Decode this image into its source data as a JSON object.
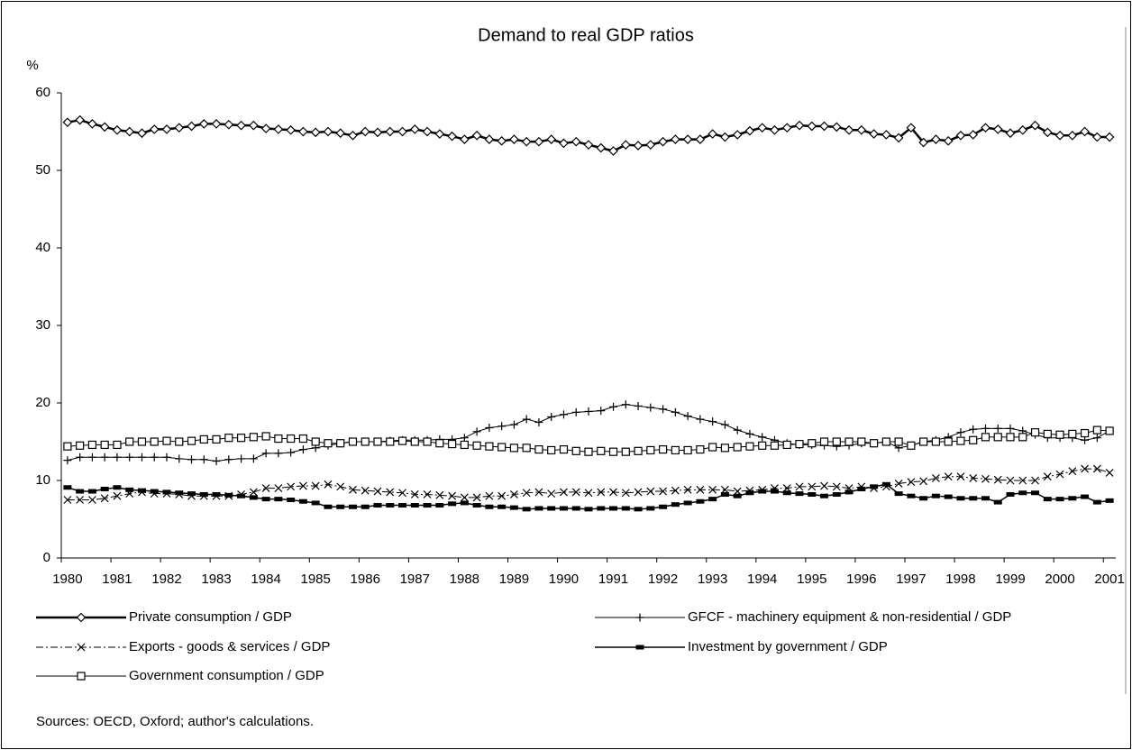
{
  "chart_data": {
    "type": "line",
    "title": "Demand to real GDP ratios",
    "y_label": "%",
    "source": "Sources: OECD, Oxford; author's calculations.",
    "categories": [
      "1980",
      null,
      null,
      null,
      "1981",
      null,
      null,
      null,
      "1982",
      null,
      null,
      null,
      "1983",
      null,
      null,
      null,
      "1984",
      null,
      null,
      null,
      "1985",
      null,
      null,
      null,
      "1986",
      null,
      null,
      null,
      "1987",
      null,
      null,
      null,
      "1988",
      null,
      null,
      null,
      "1989",
      null,
      null,
      null,
      "1990",
      null,
      null,
      null,
      "1991",
      null,
      null,
      null,
      "1992",
      null,
      null,
      null,
      "1993",
      null,
      null,
      null,
      "1994",
      null,
      null,
      null,
      "1995",
      null,
      null,
      null,
      "1996",
      null,
      null,
      null,
      "1997",
      null,
      null,
      null,
      "1998",
      null,
      null,
      null,
      "1999",
      null,
      null,
      null,
      "2000",
      null,
      null,
      null,
      "2001"
    ],
    "ylim": [
      0,
      60
    ],
    "yticks": [
      0,
      10,
      20,
      30,
      40,
      50,
      60
    ],
    "grid": false,
    "legend": "bottom",
    "series": [
      {
        "name": "Private consumption / GDP",
        "color": "#000000",
        "marker": "diamond",
        "dash": "solid",
        "width": 2.5,
        "values": [
          56.2,
          56.5,
          56.0,
          55.6,
          55.2,
          55.0,
          54.8,
          55.3,
          55.3,
          55.5,
          55.7,
          56.0,
          56.0,
          55.9,
          55.8,
          55.8,
          55.4,
          55.3,
          55.2,
          55.0,
          54.9,
          55.0,
          54.8,
          54.5,
          55.0,
          54.9,
          55.0,
          55.0,
          55.3,
          55.0,
          54.7,
          54.4,
          54.0,
          54.5,
          54.0,
          53.8,
          54.0,
          53.7,
          53.7,
          54.0,
          53.5,
          53.7,
          53.3,
          52.9,
          52.5,
          53.3,
          53.2,
          53.3,
          53.7,
          54.0,
          54.0,
          54.0,
          54.7,
          54.3,
          54.6,
          55.1,
          55.5,
          55.2,
          55.5,
          55.8,
          55.7,
          55.7,
          55.6,
          55.2,
          55.2,
          54.7,
          54.6,
          54.2,
          55.5,
          53.6,
          54.0,
          53.8,
          54.5,
          54.6,
          55.5,
          55.3,
          54.8,
          55.2,
          55.8,
          54.9,
          54.5,
          54.5,
          55.0,
          54.3,
          54.3
        ]
      },
      {
        "name": "GFCF - machinery equipment & non-residential / GDP",
        "color": "#000000",
        "marker": "plus",
        "dash": "solid",
        "width": 1,
        "values": [
          12.6,
          13.0,
          13.0,
          13.0,
          13.0,
          13.0,
          13.0,
          13.0,
          13.0,
          12.8,
          12.7,
          12.7,
          12.5,
          12.7,
          12.8,
          12.8,
          13.5,
          13.5,
          13.6,
          14.0,
          14.2,
          14.5,
          14.8,
          15.0,
          15.0,
          15.0,
          15.1,
          15.2,
          15.2,
          15.2,
          15.3,
          15.3,
          15.5,
          16.3,
          16.8,
          17.0,
          17.2,
          17.9,
          17.5,
          18.2,
          18.5,
          18.8,
          18.9,
          19.0,
          19.5,
          19.8,
          19.6,
          19.4,
          19.2,
          18.8,
          18.3,
          17.9,
          17.6,
          17.2,
          16.5,
          16.0,
          15.6,
          15.2,
          14.8,
          14.6,
          14.6,
          14.5,
          14.4,
          14.5,
          14.8,
          14.8,
          15.0,
          14.2,
          14.5,
          15.0,
          15.2,
          15.6,
          16.2,
          16.6,
          16.7,
          16.7,
          16.7,
          16.4,
          15.9,
          15.5,
          15.5,
          15.5,
          15.2,
          15.5,
          16.4
        ]
      },
      {
        "name": "Exports - goods & services / GDP",
        "color": "#000000",
        "marker": "cross",
        "dash": "dashdot",
        "width": 1,
        "values": [
          7.5,
          7.5,
          7.5,
          7.7,
          8.0,
          8.3,
          8.5,
          8.3,
          8.3,
          8.2,
          8.0,
          8.0,
          8.0,
          8.0,
          8.2,
          8.5,
          9.0,
          9.0,
          9.2,
          9.3,
          9.3,
          9.5,
          9.2,
          8.8,
          8.7,
          8.6,
          8.5,
          8.4,
          8.2,
          8.2,
          8.1,
          8.0,
          7.8,
          7.8,
          8.0,
          8.0,
          8.2,
          8.4,
          8.5,
          8.3,
          8.5,
          8.5,
          8.4,
          8.5,
          8.5,
          8.4,
          8.5,
          8.6,
          8.6,
          8.7,
          8.8,
          8.8,
          8.8,
          8.8,
          8.6,
          8.7,
          8.8,
          9.0,
          9.0,
          9.2,
          9.2,
          9.3,
          9.2,
          9.0,
          9.2,
          9.0,
          9.2,
          9.6,
          9.8,
          9.9,
          10.3,
          10.5,
          10.5,
          10.3,
          10.2,
          10.1,
          10.0,
          10.0,
          10.0,
          10.5,
          10.8,
          11.2,
          11.5,
          11.5,
          11.0
        ]
      },
      {
        "name": "Investment by government / GDP",
        "color": "#000000",
        "marker": "square-filled",
        "dash": "solid",
        "width": 1.5,
        "values": [
          9.1,
          8.6,
          8.6,
          8.9,
          9.1,
          8.8,
          8.7,
          8.6,
          8.5,
          8.4,
          8.3,
          8.2,
          8.2,
          8.1,
          8.0,
          7.8,
          7.6,
          7.6,
          7.5,
          7.3,
          7.1,
          6.6,
          6.6,
          6.6,
          6.6,
          6.8,
          6.8,
          6.8,
          6.8,
          6.8,
          6.8,
          7.0,
          7.1,
          6.8,
          6.6,
          6.6,
          6.5,
          6.3,
          6.4,
          6.4,
          6.4,
          6.4,
          6.3,
          6.4,
          6.4,
          6.4,
          6.3,
          6.4,
          6.6,
          6.9,
          7.1,
          7.3,
          7.6,
          8.2,
          8.0,
          8.4,
          8.6,
          8.6,
          8.4,
          8.3,
          8.2,
          8.0,
          8.2,
          8.5,
          8.9,
          9.2,
          9.5,
          8.3,
          8.0,
          7.7,
          8.0,
          7.9,
          7.7,
          7.7,
          7.7,
          7.2,
          8.2,
          8.4,
          8.4,
          7.6,
          7.6,
          7.7,
          7.9,
          7.2,
          7.4
        ]
      },
      {
        "name": "Government consumption / GDP",
        "color": "#000000",
        "marker": "square-open",
        "dash": "solid",
        "width": 1,
        "values": [
          14.4,
          14.5,
          14.6,
          14.6,
          14.6,
          15.0,
          15.0,
          15.0,
          15.1,
          15.0,
          15.1,
          15.3,
          15.3,
          15.5,
          15.5,
          15.6,
          15.7,
          15.4,
          15.4,
          15.4,
          15.0,
          14.8,
          14.8,
          15.0,
          15.0,
          15.0,
          15.0,
          15.1,
          15.0,
          15.0,
          14.8,
          14.7,
          14.6,
          14.5,
          14.4,
          14.3,
          14.2,
          14.2,
          14.0,
          13.9,
          14.0,
          13.8,
          13.7,
          13.8,
          13.7,
          13.7,
          13.8,
          13.9,
          14.0,
          13.9,
          13.9,
          14.0,
          14.3,
          14.2,
          14.3,
          14.4,
          14.5,
          14.5,
          14.6,
          14.7,
          14.8,
          15.0,
          15.0,
          15.0,
          15.0,
          14.8,
          15.0,
          15.0,
          14.5,
          15.0,
          15.0,
          15.0,
          15.1,
          15.2,
          15.6,
          15.6,
          15.6,
          15.6,
          16.2,
          16.0,
          15.9,
          16.0,
          16.1,
          16.5,
          16.4
        ]
      }
    ]
  }
}
